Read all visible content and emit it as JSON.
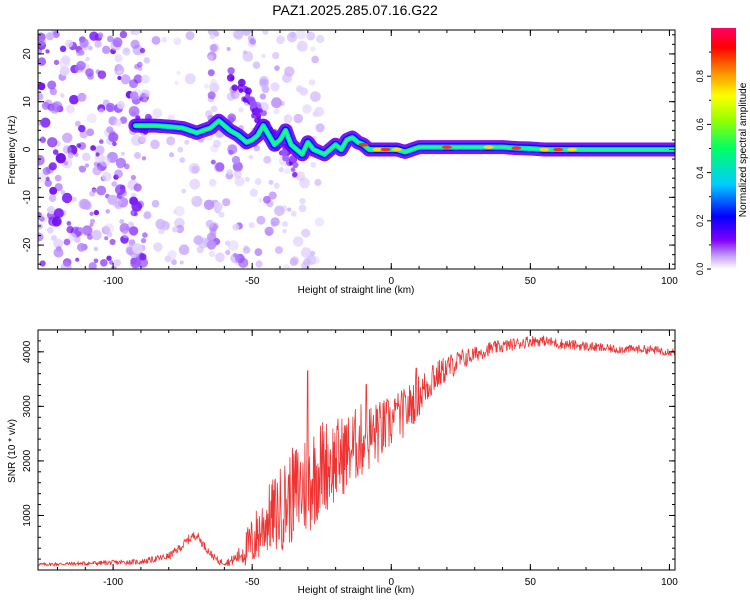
{
  "title": "PAZ1.2025.285.07.16.G22",
  "chart_data": [
    {
      "type": "heatmap",
      "title": "PAZ1.2025.285.07.16.G22",
      "xlabel": "Height of straight line (km)",
      "ylabel": "Frequency (Hz)",
      "xlim": [
        -127,
        102
      ],
      "ylim": [
        -25,
        25
      ],
      "xticks": [
        -100,
        -50,
        0,
        50,
        100
      ],
      "yticks": [
        -20,
        -10,
        0,
        10,
        20
      ],
      "xtick_labels": [
        "-100",
        "-50",
        "0",
        "50",
        "100"
      ],
      "ytick_labels": [
        "-20",
        "-10",
        "0",
        "10",
        "20"
      ],
      "ridge": {
        "description": "dominant frequency track",
        "x": [
          -90,
          -85,
          -80,
          -75,
          -70,
          -65,
          -62,
          -58,
          -55,
          -52,
          -50,
          -48,
          -46,
          -44,
          -42,
          -40,
          -38,
          -36,
          -34,
          -32,
          -30,
          -28,
          -26,
          -24,
          -22,
          -20,
          -18,
          -16,
          -14,
          -12,
          -10,
          -8,
          -6,
          -4,
          -2,
          0,
          2,
          5,
          10,
          15,
          20,
          25,
          30,
          35,
          40,
          45,
          50,
          55,
          60,
          70,
          80,
          90,
          100
        ],
        "y": [
          5,
          5,
          4.8,
          4.5,
          3.5,
          4.5,
          6,
          4,
          3,
          1.5,
          2,
          3,
          5,
          3,
          1,
          2,
          4,
          1,
          0,
          -1,
          1.5,
          0,
          -0.5,
          -1,
          0,
          1,
          0,
          2,
          2.5,
          1.5,
          1,
          0,
          0,
          0,
          0,
          0,
          0,
          -0.5,
          0.5,
          0.5,
          0.5,
          0.5,
          0.5,
          0.5,
          0.5,
          0.3,
          0.2,
          0,
          0,
          0,
          0,
          0,
          0
        ]
      },
      "colorbar": {
        "label": "Normalized spectral amplitude",
        "range": [
          0,
          1
        ],
        "ticks": [
          0.0,
          0.2,
          0.4,
          0.6,
          0.8
        ],
        "tick_labels": [
          "0.0",
          "0.2",
          "0.4",
          "0.6",
          "0.8"
        ]
      }
    },
    {
      "type": "line",
      "xlabel": "Height of straight line (km)",
      "ylabel": "SNR (10 * v/v)",
      "xlim": [
        -127,
        102
      ],
      "ylim": [
        0,
        4400
      ],
      "xticks": [
        -100,
        -50,
        0,
        50,
        100
      ],
      "yticks": [
        1000,
        2000,
        3000,
        4000
      ],
      "xtick_labels": [
        "-100",
        "-50",
        "0",
        "50",
        "100"
      ],
      "ytick_labels": [
        "1000",
        "2000",
        "3000",
        "4000"
      ],
      "color": "#ee3333",
      "series": [
        {
          "name": "SNR",
          "x": [
            -127,
            -110,
            -90,
            -80,
            -75,
            -72,
            -70,
            -68,
            -65,
            -62,
            -58,
            -55,
            -50,
            -45,
            -40,
            -35,
            -30,
            -25,
            -20,
            -15,
            -10,
            -5,
            0,
            5,
            10,
            15,
            20,
            25,
            30,
            35,
            40,
            45,
            50,
            55,
            60,
            70,
            80,
            90,
            102
          ],
          "y": [
            100,
            120,
            150,
            250,
            450,
            600,
            650,
            500,
            300,
            150,
            150,
            250,
            500,
            900,
            1100,
            1400,
            1600,
            1900,
            2000,
            2200,
            2400,
            2500,
            2700,
            2900,
            3200,
            3500,
            3700,
            3850,
            3950,
            4050,
            4100,
            4150,
            4200,
            4200,
            4150,
            4100,
            4050,
            4050,
            4000
          ],
          "noise": [
            30,
            40,
            50,
            70,
            80,
            90,
            80,
            80,
            70,
            60,
            80,
            150,
            500,
            600,
            800,
            900,
            1000,
            900,
            800,
            700,
            700,
            600,
            500,
            450,
            400,
            300,
            250,
            200,
            150,
            130,
            120,
            110,
            110,
            100,
            100,
            90,
            80,
            80,
            80
          ]
        }
      ],
      "spikes": [
        {
          "x": -30,
          "y": 3650
        },
        {
          "x": -9,
          "y": 3400
        },
        {
          "x": -5,
          "y": 2950
        },
        {
          "x": 2,
          "y": 3050
        },
        {
          "x": 9,
          "y": 3700
        },
        {
          "x": 15,
          "y": 3750
        }
      ]
    }
  ]
}
